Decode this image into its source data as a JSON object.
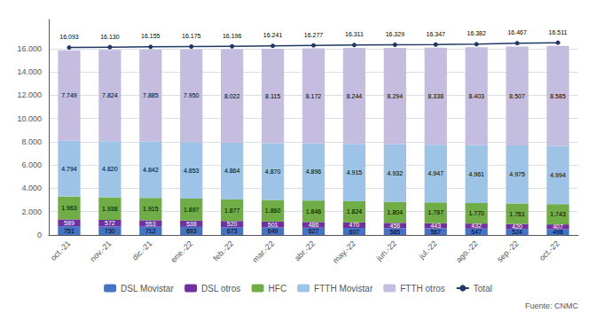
{
  "chart_data": {
    "type": "bar",
    "categories": [
      "oct.-21",
      "nov.-21",
      "dic.-21",
      "ene.-22",
      "feb.-22",
      "mar.-22",
      "abr.-22",
      "may.-22",
      "jun.-22",
      "jul.-22",
      "ago.-22",
      "sep.-22",
      "oct.-22"
    ],
    "stacked": true,
    "data_labels": true,
    "grid": true,
    "legend": "bottom",
    "ylim": [
      0,
      18500
    ],
    "yticks": [
      0,
      {
        "value": 2000,
        "label": "2.000"
      },
      {
        "value": 4000,
        "label": "4.000"
      },
      {
        "value": 6000,
        "label": "6.000"
      },
      {
        "value": 8000,
        "label": "8.000"
      },
      {
        "value": 10000,
        "label": "10.000"
      },
      {
        "value": 12000,
        "label": "12.000"
      },
      {
        "value": 14000,
        "label": "14.000"
      },
      {
        "value": 16000,
        "label": "16.000"
      }
    ],
    "annotations": [
      "Fuente: CNMC"
    ],
    "series": [
      {
        "name": "DSL Movistar",
        "type": "bar",
        "color": "#4472C4",
        "values": [
          751,
          730,
          712,
          693,
          673,
          649,
          627,
          607,
          585,
          567,
          547,
          524,
          498
        ],
        "value_labels": [
          "751",
          "730",
          "712",
          "693",
          "673",
          "649",
          "627",
          "607",
          "585",
          "567",
          "547",
          "524",
          "498"
        ]
      },
      {
        "name": "DSL otros",
        "type": "bar",
        "color": "#7030A0",
        "values": [
          589,
          572,
          553,
          538,
          520,
          501,
          486,
          470,
          456,
          443,
          432,
          420,
          407
        ],
        "value_labels": [
          "589",
          "572",
          "553",
          "538",
          "520",
          "501",
          "486",
          "470",
          "456",
          "443",
          "432",
          "420",
          "407"
        ]
      },
      {
        "name": "HFC",
        "type": "bar",
        "color": "#70AD47",
        "values": [
          1963,
          1938,
          1915,
          1897,
          1877,
          1860,
          1846,
          1824,
          1804,
          1787,
          1770,
          1761,
          1743
        ],
        "value_labels": [
          "1.963",
          "1.938",
          "1.915",
          "1.897",
          "1.877",
          "1.860",
          "1.846",
          "1.824",
          "1.804",
          "1.787",
          "1.770",
          "1.761",
          "1.743"
        ]
      },
      {
        "name": "FTTH Movistar",
        "type": "bar",
        "color": "#9DC3E6",
        "values": [
          4794,
          4820,
          4842,
          4853,
          4864,
          4870,
          4896,
          4915,
          4932,
          4947,
          4961,
          4975,
          4994
        ],
        "value_labels": [
          "4.794",
          "4.820",
          "4.842",
          "4.853",
          "4.864",
          "4.870",
          "4.896",
          "4.915",
          "4.932",
          "4.947",
          "4.961",
          "4.975",
          "4.994"
        ]
      },
      {
        "name": "FTTH otros",
        "type": "bar",
        "color": "#C5BDE0",
        "values": [
          7749,
          7824,
          7885,
          7950,
          8022,
          8115,
          8172,
          8244,
          8294,
          8338,
          8403,
          8507,
          8585
        ],
        "value_labels": [
          "7.749",
          "7.824",
          "7.885",
          "7.950",
          "8.022",
          "8.115",
          "8.172",
          "8.244",
          "8.294",
          "8.338",
          "8.403",
          "8.507",
          "8.585"
        ]
      },
      {
        "name": "Total",
        "type": "line",
        "color": "#1F3864",
        "marker": "circle",
        "values": [
          16093,
          16130,
          16155,
          16175,
          16196,
          16241,
          16277,
          16311,
          16329,
          16347,
          16382,
          16467,
          16511
        ],
        "value_labels": [
          "16.093",
          "16.130",
          "16.155",
          "16.175",
          "16.196",
          "16.241",
          "16.277",
          "16.311",
          "16.329",
          "16.347",
          "16.382",
          "16.467",
          "16.511"
        ]
      }
    ]
  }
}
